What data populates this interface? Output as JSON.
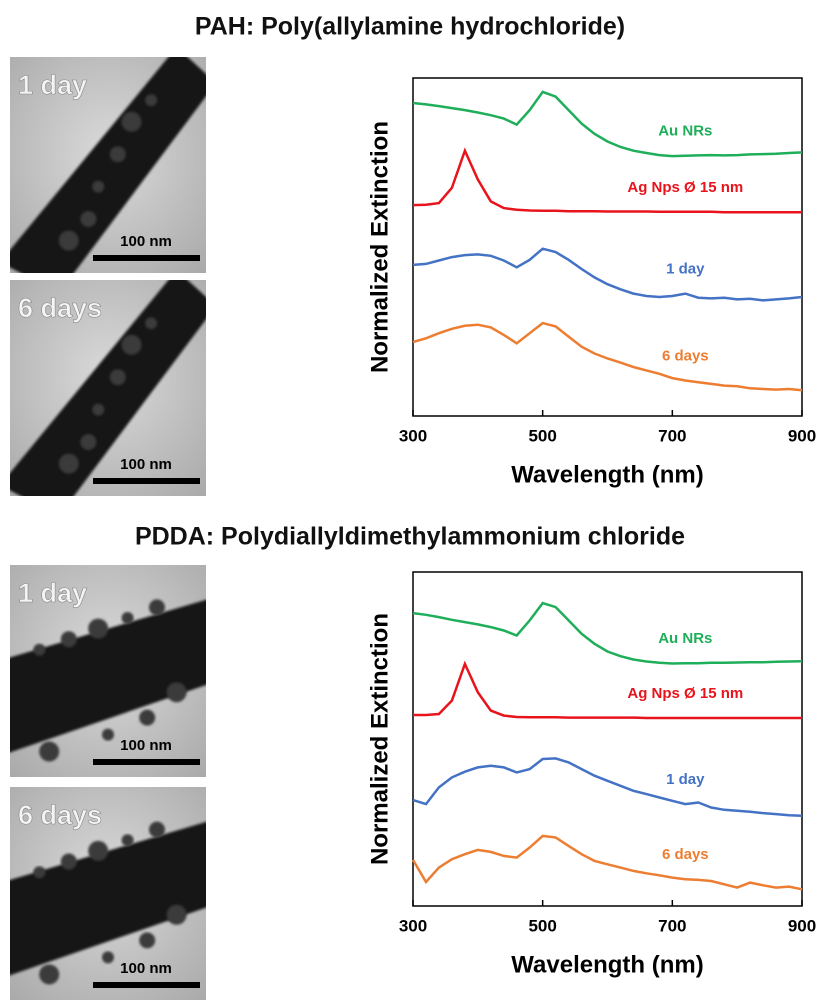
{
  "chart_data": [
    {
      "type": "line",
      "title": "PAH: Poly(allylamine hydrochloride)",
      "xlabel": "Wavelength (nm)",
      "ylabel": "Normalized Extinction",
      "x": [
        300,
        320,
        340,
        360,
        380,
        400,
        420,
        440,
        460,
        480,
        500,
        520,
        540,
        560,
        580,
        600,
        620,
        640,
        660,
        680,
        700,
        720,
        740,
        760,
        780,
        800,
        820,
        840,
        860,
        880,
        900
      ],
      "xlim": [
        300,
        900
      ],
      "xticks": [
        300,
        500,
        700,
        900
      ],
      "ylim": [
        0,
        10
      ],
      "series": [
        {
          "name": "Au NRs",
          "color": "#1fae5a",
          "values": [
            9.26,
            9.22,
            9.17,
            9.11,
            9.05,
            8.98,
            8.9,
            8.8,
            8.62,
            9.05,
            9.59,
            9.45,
            9.05,
            8.65,
            8.35,
            8.12,
            7.96,
            7.85,
            7.78,
            7.72,
            7.69,
            7.7,
            7.71,
            7.72,
            7.71,
            7.72,
            7.74,
            7.75,
            7.76,
            7.78,
            7.8
          ]
        },
        {
          "name": "Ag Nps Ø 15 nm",
          "color": "#e8141c",
          "values": [
            6.24,
            6.25,
            6.3,
            6.75,
            7.85,
            7.0,
            6.35,
            6.15,
            6.1,
            6.08,
            6.07,
            6.07,
            6.06,
            6.06,
            6.06,
            6.05,
            6.05,
            6.05,
            6.05,
            6.04,
            6.04,
            6.04,
            6.04,
            6.04,
            6.03,
            6.03,
            6.03,
            6.03,
            6.03,
            6.03,
            6.03
          ]
        },
        {
          "name": "1 day",
          "color": "#4472c4",
          "values": [
            4.47,
            4.5,
            4.6,
            4.7,
            4.76,
            4.78,
            4.74,
            4.6,
            4.4,
            4.62,
            4.95,
            4.85,
            4.62,
            4.35,
            4.1,
            3.9,
            3.75,
            3.62,
            3.55,
            3.52,
            3.55,
            3.62,
            3.5,
            3.48,
            3.5,
            3.45,
            3.47,
            3.42,
            3.45,
            3.48,
            3.52
          ]
        },
        {
          "name": "6 days",
          "color": "#ed7d31",
          "values": [
            2.19,
            2.3,
            2.45,
            2.58,
            2.67,
            2.7,
            2.62,
            2.4,
            2.15,
            2.45,
            2.75,
            2.65,
            2.35,
            2.05,
            1.85,
            1.7,
            1.58,
            1.45,
            1.35,
            1.25,
            1.12,
            1.05,
            1.0,
            0.95,
            0.9,
            0.88,
            0.82,
            0.8,
            0.78,
            0.8,
            0.76
          ]
        }
      ]
    },
    {
      "type": "line",
      "title": "PDDA: Polydiallyldimethylammonium chloride",
      "xlabel": "Wavelength (nm)",
      "ylabel": "Normalized Extinction",
      "x": [
        300,
        320,
        340,
        360,
        380,
        400,
        420,
        440,
        460,
        480,
        500,
        520,
        540,
        560,
        580,
        600,
        620,
        640,
        660,
        680,
        700,
        720,
        740,
        760,
        780,
        800,
        820,
        840,
        860,
        880,
        900
      ],
      "xlim": [
        300,
        900
      ],
      "xticks": [
        300,
        500,
        700,
        900
      ],
      "ylim": [
        0,
        10
      ],
      "series": [
        {
          "name": "Au NRs",
          "color": "#1fae5a",
          "values": [
            8.77,
            8.72,
            8.65,
            8.57,
            8.5,
            8.43,
            8.35,
            8.25,
            8.1,
            8.55,
            9.07,
            8.95,
            8.55,
            8.15,
            7.85,
            7.62,
            7.48,
            7.38,
            7.32,
            7.28,
            7.26,
            7.27,
            7.27,
            7.28,
            7.28,
            7.29,
            7.3,
            7.3,
            7.31,
            7.32,
            7.33
          ]
        },
        {
          "name": "Ag Nps Ø 15 nm",
          "color": "#e8141c",
          "values": [
            5.72,
            5.72,
            5.75,
            6.15,
            7.25,
            6.4,
            5.85,
            5.7,
            5.66,
            5.65,
            5.65,
            5.65,
            5.64,
            5.64,
            5.64,
            5.64,
            5.64,
            5.64,
            5.63,
            5.63,
            5.63,
            5.63,
            5.63,
            5.63,
            5.63,
            5.63,
            5.63,
            5.63,
            5.63,
            5.63,
            5.63
          ]
        },
        {
          "name": "1 day",
          "color": "#4472c4",
          "values": [
            3.17,
            3.05,
            3.55,
            3.85,
            4.02,
            4.15,
            4.2,
            4.15,
            4.0,
            4.1,
            4.4,
            4.42,
            4.3,
            4.1,
            3.9,
            3.75,
            3.6,
            3.45,
            3.35,
            3.25,
            3.15,
            3.05,
            3.1,
            2.95,
            2.88,
            2.85,
            2.82,
            2.78,
            2.75,
            2.72,
            2.7
          ]
        },
        {
          "name": "6 days",
          "color": "#ed7d31",
          "values": [
            1.38,
            0.72,
            1.15,
            1.4,
            1.55,
            1.68,
            1.62,
            1.5,
            1.45,
            1.75,
            2.1,
            2.05,
            1.8,
            1.55,
            1.35,
            1.25,
            1.15,
            1.05,
            0.98,
            0.92,
            0.85,
            0.8,
            0.78,
            0.75,
            0.65,
            0.55,
            0.7,
            0.62,
            0.55,
            0.58,
            0.5
          ]
        }
      ]
    }
  ],
  "micrographs": [
    [
      {
        "label": "1 day",
        "scale_bar": "100 nm"
      },
      {
        "label": "6 days",
        "scale_bar": "100 nm"
      }
    ],
    [
      {
        "label": "1 day",
        "scale_bar": "100 nm"
      },
      {
        "label": "6 days",
        "scale_bar": "100 nm"
      }
    ]
  ]
}
